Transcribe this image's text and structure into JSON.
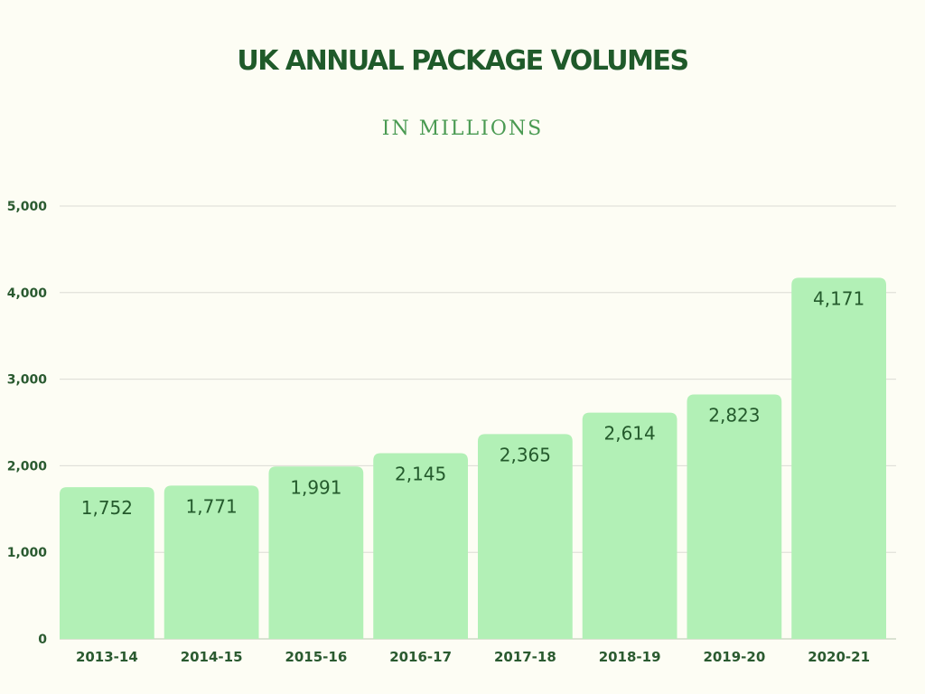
{
  "chart_data": {
    "type": "bar",
    "title": "UK ANNUAL PACKAGE VOLUMES",
    "subtitle": "IN MILLIONS",
    "xlabel": "",
    "ylabel": "",
    "categories": [
      "2013-14",
      "2014-15",
      "2015-16",
      "2016-17",
      "2017-18",
      "2018-19",
      "2019-20",
      "2020-21"
    ],
    "values": [
      1752,
      1771,
      1991,
      2145,
      2365,
      2614,
      2823,
      4171
    ],
    "data_labels": [
      "1,752",
      "1,771",
      "1,991",
      "2,145",
      "2,365",
      "2,614",
      "2,823",
      "4,171"
    ],
    "ylim": [
      0,
      5000
    ],
    "yticks": [
      0,
      1000,
      2000,
      3000,
      4000,
      5000
    ],
    "ytick_labels": [
      "0",
      "1,000",
      "2,000",
      "3,000",
      "4,000",
      "5,000"
    ],
    "grid": true,
    "legend": "none",
    "colors": {
      "bar": "#b2f0b6",
      "grid": "#dcdcd4",
      "text": "#2a5a30",
      "title": "#1f5a2a",
      "subtitle": "#4a9a52",
      "background": "#fdfdf4"
    }
  }
}
